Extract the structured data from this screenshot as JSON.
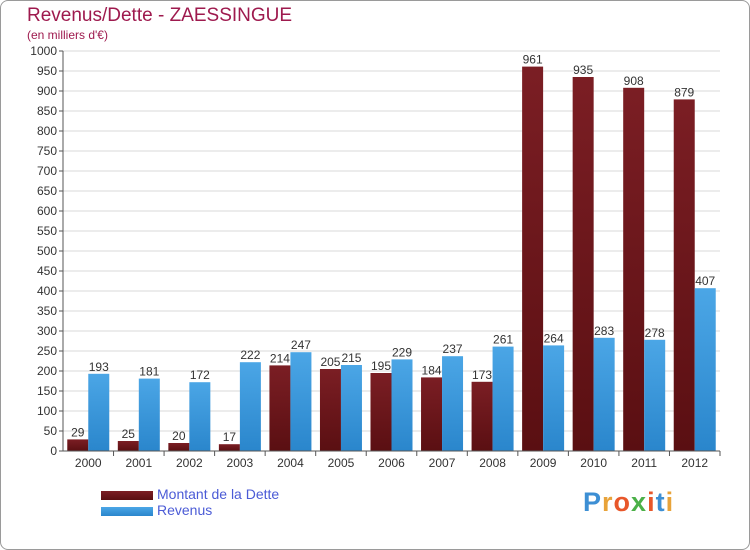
{
  "title": "Revenus/Dette - ZAESSINGUE",
  "subtitle": "(en milliers d'€)",
  "logo": {
    "text": "Proxiti",
    "letter_colors": [
      "#3d8fd4",
      "#e8a33a",
      "#e8572a",
      "#4bb048",
      "#e8572a",
      "#3d8fd4",
      "#e8a33a"
    ]
  },
  "colors": {
    "debt": "#7b1e24",
    "debt_dark": "#5a0f12",
    "revenue": "#4ba6e6",
    "revenue_dark": "#2a86cc",
    "title": "#9e1a4e",
    "grid": "#d9d9d9"
  },
  "chart_data": {
    "type": "bar",
    "categories": [
      "2000",
      "2001",
      "2002",
      "2003",
      "2004",
      "2005",
      "2006",
      "2007",
      "2008",
      "2009",
      "2010",
      "2011",
      "2012"
    ],
    "series": [
      {
        "name": "Montant de la Dette",
        "values": [
          29,
          25,
          20,
          17,
          214,
          205,
          195,
          184,
          173,
          961,
          935,
          908,
          879
        ]
      },
      {
        "name": "Revenus",
        "values": [
          193,
          181,
          172,
          222,
          247,
          215,
          229,
          237,
          261,
          264,
          283,
          278,
          407
        ]
      }
    ],
    "yticks": [
      0,
      50,
      100,
      150,
      200,
      250,
      300,
      350,
      400,
      450,
      500,
      550,
      600,
      650,
      700,
      750,
      800,
      850,
      900,
      950,
      1000
    ],
    "ylim": [
      0,
      1000
    ],
    "grid": true,
    "legend_position": "bottom-left"
  }
}
